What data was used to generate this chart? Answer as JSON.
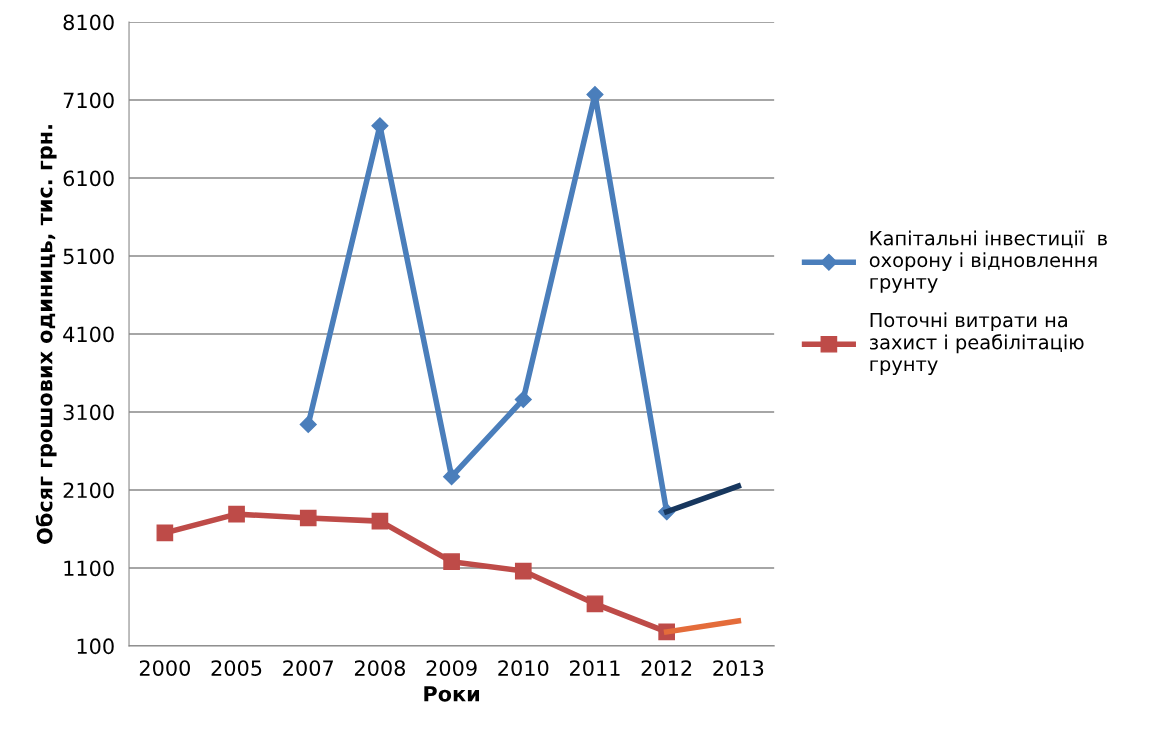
{
  "chart_data": {
    "type": "line",
    "xlabel": "Роки",
    "ylabel": "Обсяг грошових одиниць, тис. грн.",
    "categories": [
      "2000",
      "2005",
      "2007",
      "2008",
      "2009",
      "2010",
      "2011",
      "2012",
      "2013"
    ],
    "series": [
      {
        "name": "Капітальні інвестиції  в охорону і відновлення грунту",
        "color": "#4a7ebb",
        "marker": "diamond",
        "values": [
          null,
          null,
          2940,
          6770,
          2270,
          3260,
          7170,
          1820,
          null
        ]
      },
      {
        "name": "Поточні витрати на захист і реабілітацію  грунту",
        "color": "#be4b48",
        "marker": "square",
        "values": [
          1550,
          1790,
          1740,
          1700,
          1180,
          1060,
          640,
          280,
          null
        ]
      },
      {
        "color": "#17375e",
        "marker": "none",
        "values": [
          null,
          null,
          null,
          null,
          null,
          null,
          null,
          1820,
          2150
        ]
      },
      {
        "color": "#e46c3a",
        "marker": "none",
        "values": [
          null,
          null,
          null,
          null,
          null,
          null,
          null,
          280,
          420
        ]
      }
    ],
    "ylim": [
      100,
      8100
    ],
    "yticks": [
      100,
      1100,
      2100,
      3100,
      4100,
      5100,
      6100,
      7100,
      8100
    ],
    "grid": "y",
    "legend": "right"
  }
}
